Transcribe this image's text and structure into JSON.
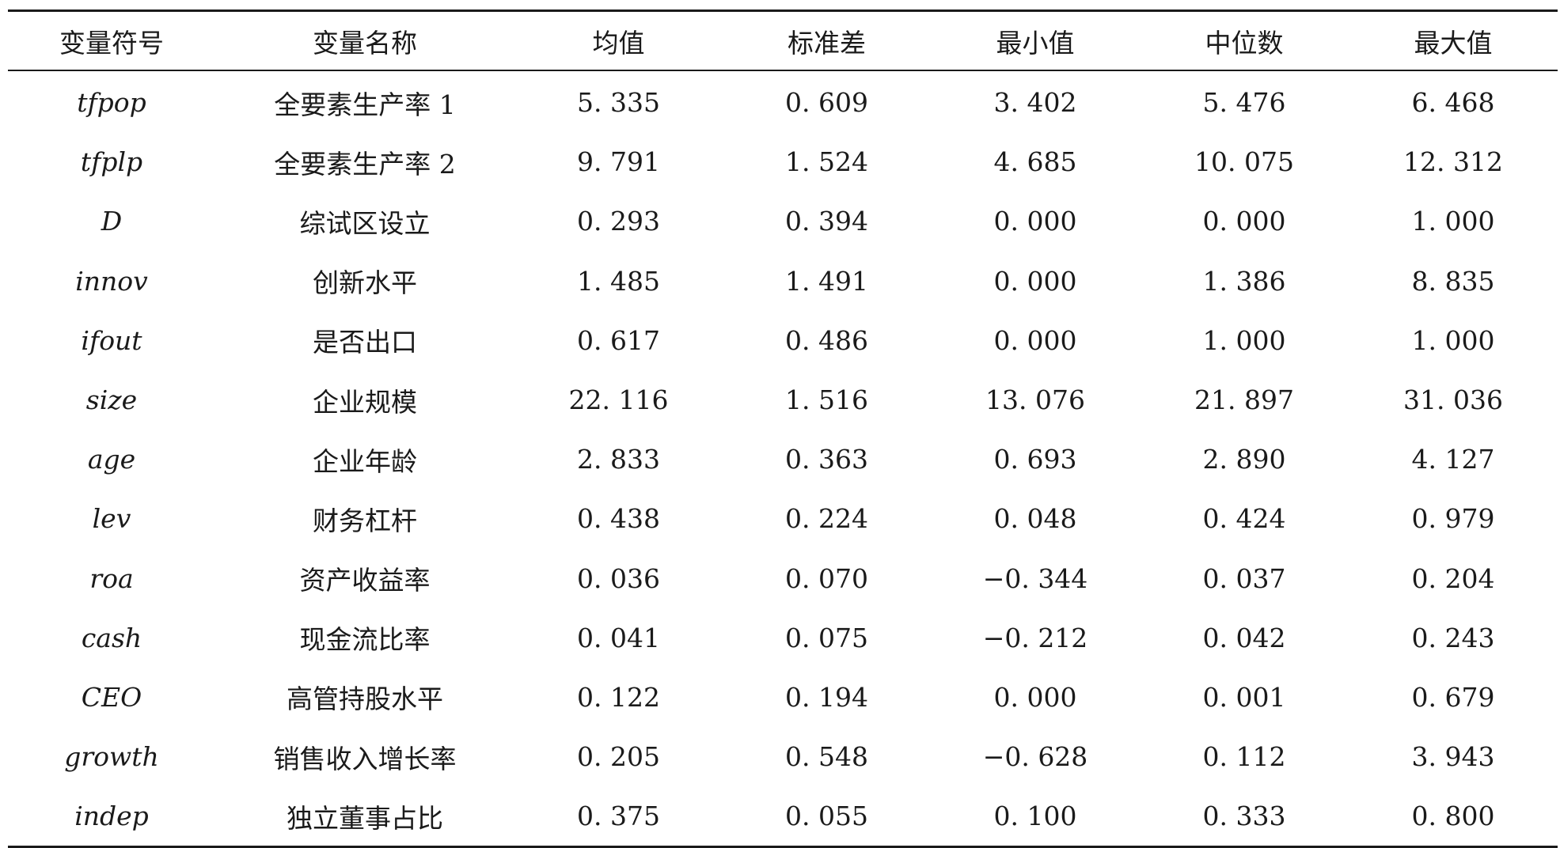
{
  "table": {
    "headers": [
      "变量符号",
      "变量名称",
      "均值",
      "标准差",
      "最小值",
      "中位数",
      "最大值"
    ],
    "rows": [
      [
        "tfpop",
        "全要素生产率 1",
        "5. 335",
        "0. 609",
        "3. 402",
        "5. 476",
        "6. 468"
      ],
      [
        "tfplp",
        "全要素生产率 2",
        "9. 791",
        "1. 524",
        "4. 685",
        "10. 075",
        "12. 312"
      ],
      [
        "D",
        "综试区设立",
        "0. 293",
        "0. 394",
        "0. 000",
        "0. 000",
        "1. 000"
      ],
      [
        "innov",
        "创新水平",
        "1. 485",
        "1. 491",
        "0. 000",
        "1. 386",
        "8. 835"
      ],
      [
        "ifout",
        "是否出口",
        "0. 617",
        "0. 486",
        "0. 000",
        "1. 000",
        "1. 000"
      ],
      [
        "size",
        "企业规模",
        "22. 116",
        "1. 516",
        "13. 076",
        "21. 897",
        "31. 036"
      ],
      [
        "age",
        "企业年龄",
        "2. 833",
        "0. 363",
        "0. 693",
        "2. 890",
        "4. 127"
      ],
      [
        "lev",
        "财务杠杆",
        "0. 438",
        "0. 224",
        "0. 048",
        "0. 424",
        "0. 979"
      ],
      [
        "roa",
        "资产收益率",
        "0. 036",
        "0. 070",
        "−0. 344",
        "0. 037",
        "0. 204"
      ],
      [
        "cash",
        "现金流比率",
        "0. 041",
        "0. 075",
        "−0. 212",
        "0. 042",
        "0. 243"
      ],
      [
        "CEO",
        "高管持股水平",
        "0. 122",
        "0. 194",
        "0. 000",
        "0. 001",
        "0. 679"
      ],
      [
        "growth",
        "销售收入增长率",
        "0. 205",
        "0. 548",
        "−0. 628",
        "0. 112",
        "3. 943"
      ],
      [
        "indep",
        "独立董事占比",
        "0. 375",
        "0. 055",
        "0. 100",
        "0. 333",
        "0. 800"
      ]
    ]
  }
}
